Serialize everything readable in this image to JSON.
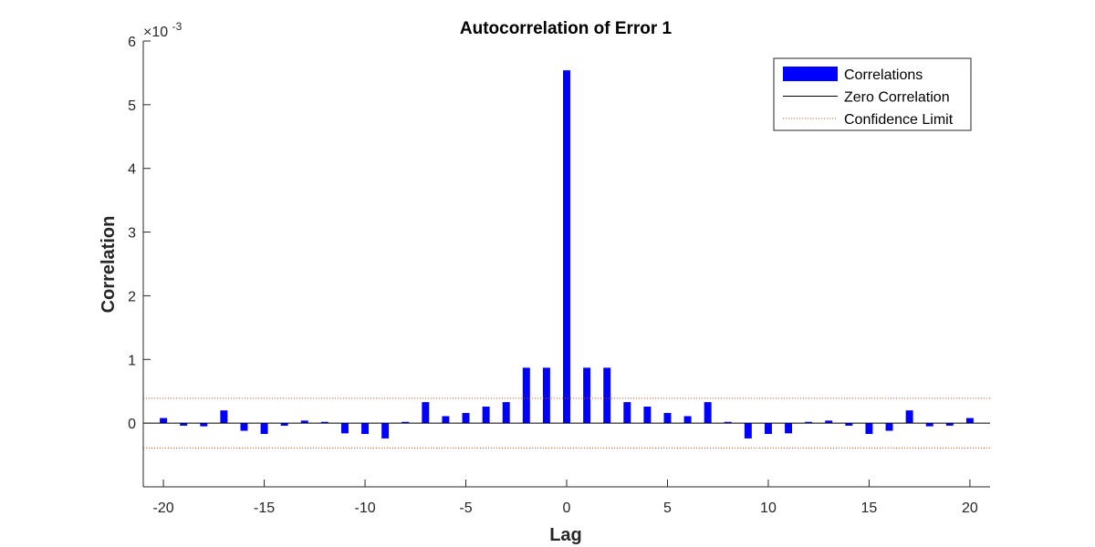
{
  "chart_data": {
    "type": "bar",
    "title": "Autocorrelation of Error 1",
    "xlabel": "Lag",
    "ylabel": "Correlation",
    "y_exponent_prefix": "×10",
    "y_exponent_power": "-3",
    "xlim": [
      -21,
      21
    ],
    "ylim": [
      -1,
      6
    ],
    "xticks": [
      -20,
      -15,
      -10,
      -5,
      0,
      5,
      10,
      15,
      20
    ],
    "xtick_labels": [
      "-20",
      "-15",
      "-10",
      "-5",
      "0",
      "5",
      "10",
      "15",
      "20"
    ],
    "yticks": [
      0,
      1,
      2,
      3,
      4,
      5,
      6
    ],
    "ytick_labels": [
      "0",
      "1",
      "2",
      "3",
      "4",
      "5",
      "6"
    ],
    "lags": [
      -20,
      -19,
      -18,
      -17,
      -16,
      -15,
      -14,
      -13,
      -12,
      -11,
      -10,
      -9,
      -8,
      -7,
      -6,
      -5,
      -4,
      -3,
      -2,
      -1,
      0,
      1,
      2,
      3,
      4,
      5,
      6,
      7,
      8,
      9,
      10,
      11,
      12,
      13,
      14,
      15,
      16,
      17,
      18,
      19,
      20
    ],
    "values": [
      0.08,
      -0.04,
      -0.05,
      0.2,
      -0.12,
      -0.17,
      -0.04,
      0.04,
      0.02,
      -0.16,
      -0.17,
      -0.24,
      0.02,
      0.33,
      0.11,
      0.16,
      0.26,
      0.33,
      0.87,
      0.87,
      5.54,
      0.87,
      0.87,
      0.33,
      0.26,
      0.16,
      0.11,
      0.33,
      0.02,
      -0.24,
      -0.17,
      -0.16,
      0.02,
      0.04,
      -0.04,
      -0.17,
      -0.12,
      0.2,
      -0.05,
      -0.04,
      0.08
    ],
    "confidence_limit": 0.39,
    "zero_line": 0,
    "legend": {
      "placement": "top-right",
      "entries": [
        {
          "label": "Correlations",
          "style": "bar",
          "color": "#0000ff"
        },
        {
          "label": "Zero Correlation",
          "style": "solid",
          "color": "#000000"
        },
        {
          "label": "Confidence Limit",
          "style": "dotted",
          "color": "#d95319"
        }
      ]
    },
    "colors": {
      "bar": "#0000ff",
      "zero_line": "#000000",
      "confidence": "#d95319",
      "axis": "#262626"
    }
  }
}
